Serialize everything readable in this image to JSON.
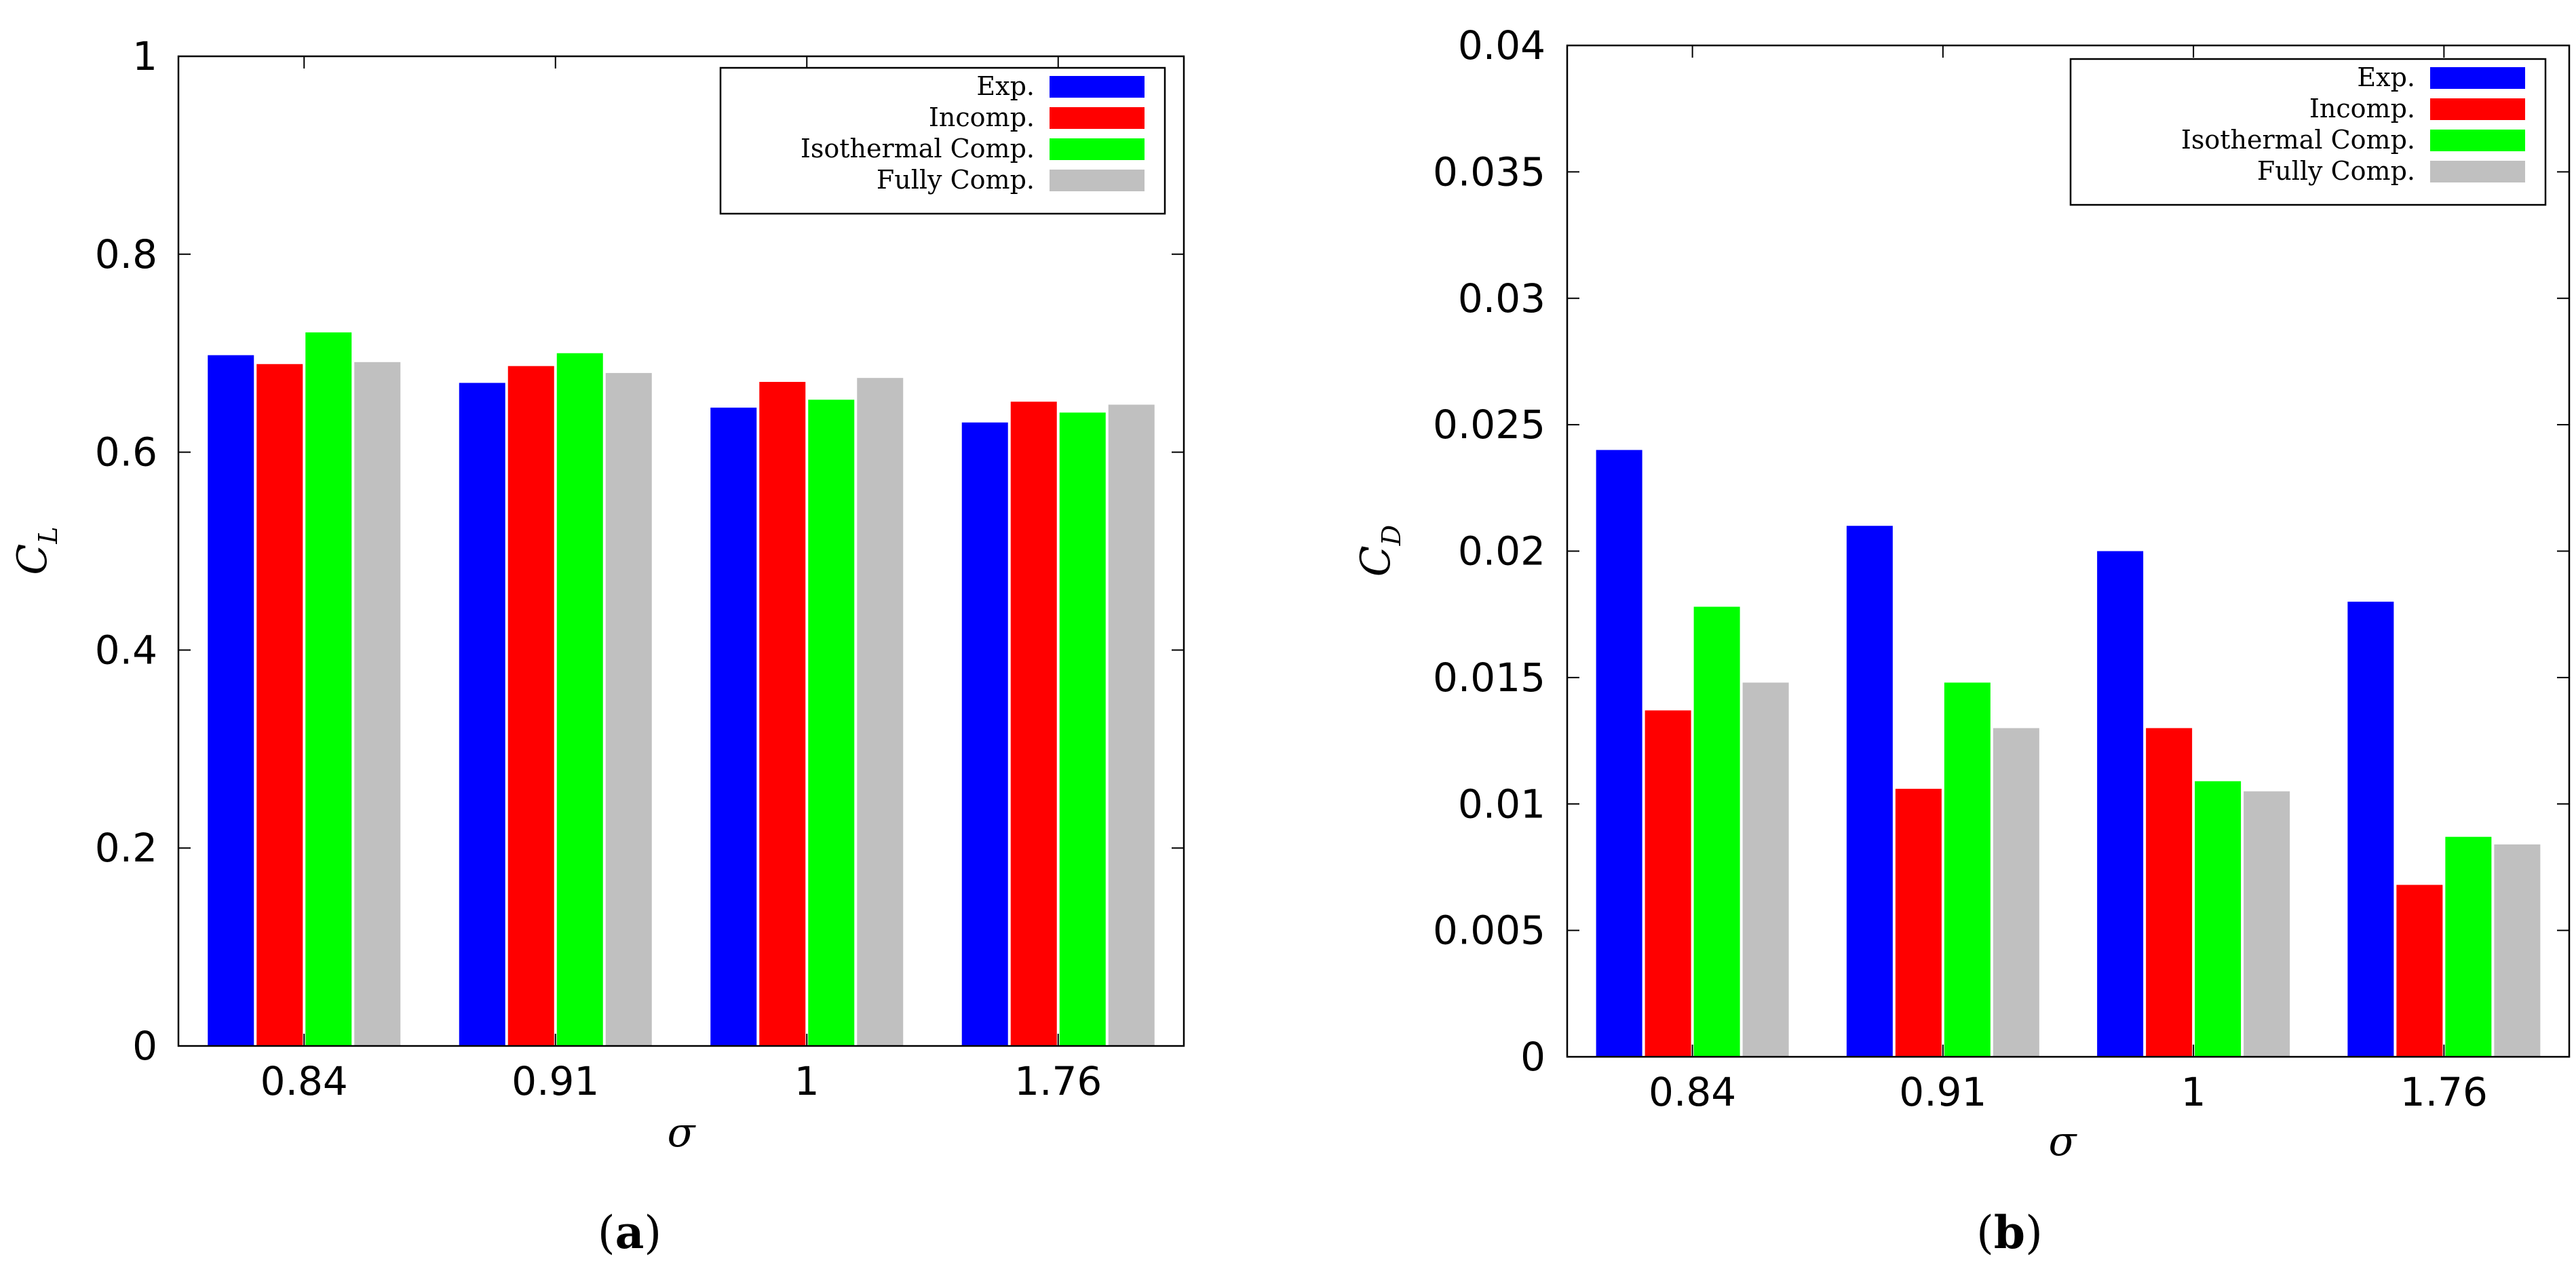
{
  "chart_data": [
    {
      "type": "bar",
      "panel_label": "(a)",
      "xlabel": "σ",
      "ylabel": "C",
      "ylabel_sub": "L",
      "categories": [
        "0.84",
        "0.91",
        "1",
        "1.76"
      ],
      "ylim": [
        0,
        1
      ],
      "yticks": [
        "0",
        "0.2",
        "0.4",
        "0.6",
        "0.8",
        "1"
      ],
      "yticks_values": [
        0,
        0.2,
        0.4,
        0.6,
        0.8,
        1
      ],
      "legend_position": "top-right",
      "series": [
        {
          "name": "Exp.",
          "color": "#0000ff",
          "values": [
            0.698,
            0.67,
            0.645,
            0.63
          ]
        },
        {
          "name": "Incomp.",
          "color": "#ff0000",
          "values": [
            0.689,
            0.687,
            0.671,
            0.651
          ]
        },
        {
          "name": "Isothermal Comp.",
          "color": "#00ff00",
          "values": [
            0.721,
            0.7,
            0.653,
            0.64
          ]
        },
        {
          "name": "Fully Comp.",
          "color": "#c0c0c0",
          "values": [
            0.691,
            0.68,
            0.675,
            0.648
          ]
        }
      ]
    },
    {
      "type": "bar",
      "panel_label": "(b)",
      "xlabel": "σ",
      "ylabel": "C",
      "ylabel_sub": "D",
      "categories": [
        "0.84",
        "0.91",
        "1",
        "1.76"
      ],
      "ylim": [
        0,
        0.04
      ],
      "yticks": [
        "0",
        "0.005",
        "0.01",
        "0.015",
        "0.02",
        "0.025",
        "0.03",
        "0.035",
        "0.04"
      ],
      "yticks_values": [
        0,
        0.005,
        0.01,
        0.015,
        0.02,
        0.025,
        0.03,
        0.035,
        0.04
      ],
      "legend_position": "top-right",
      "series": [
        {
          "name": "Exp.",
          "color": "#0000ff",
          "values": [
            0.024,
            0.021,
            0.02,
            0.018
          ]
        },
        {
          "name": "Incomp.",
          "color": "#ff0000",
          "values": [
            0.0137,
            0.0106,
            0.013,
            0.0068
          ]
        },
        {
          "name": "Isothermal Comp.",
          "color": "#00ff00",
          "values": [
            0.0178,
            0.0148,
            0.0109,
            0.0087
          ]
        },
        {
          "name": "Fully Comp.",
          "color": "#c0c0c0",
          "values": [
            0.0148,
            0.013,
            0.0105,
            0.0084
          ]
        }
      ]
    }
  ]
}
